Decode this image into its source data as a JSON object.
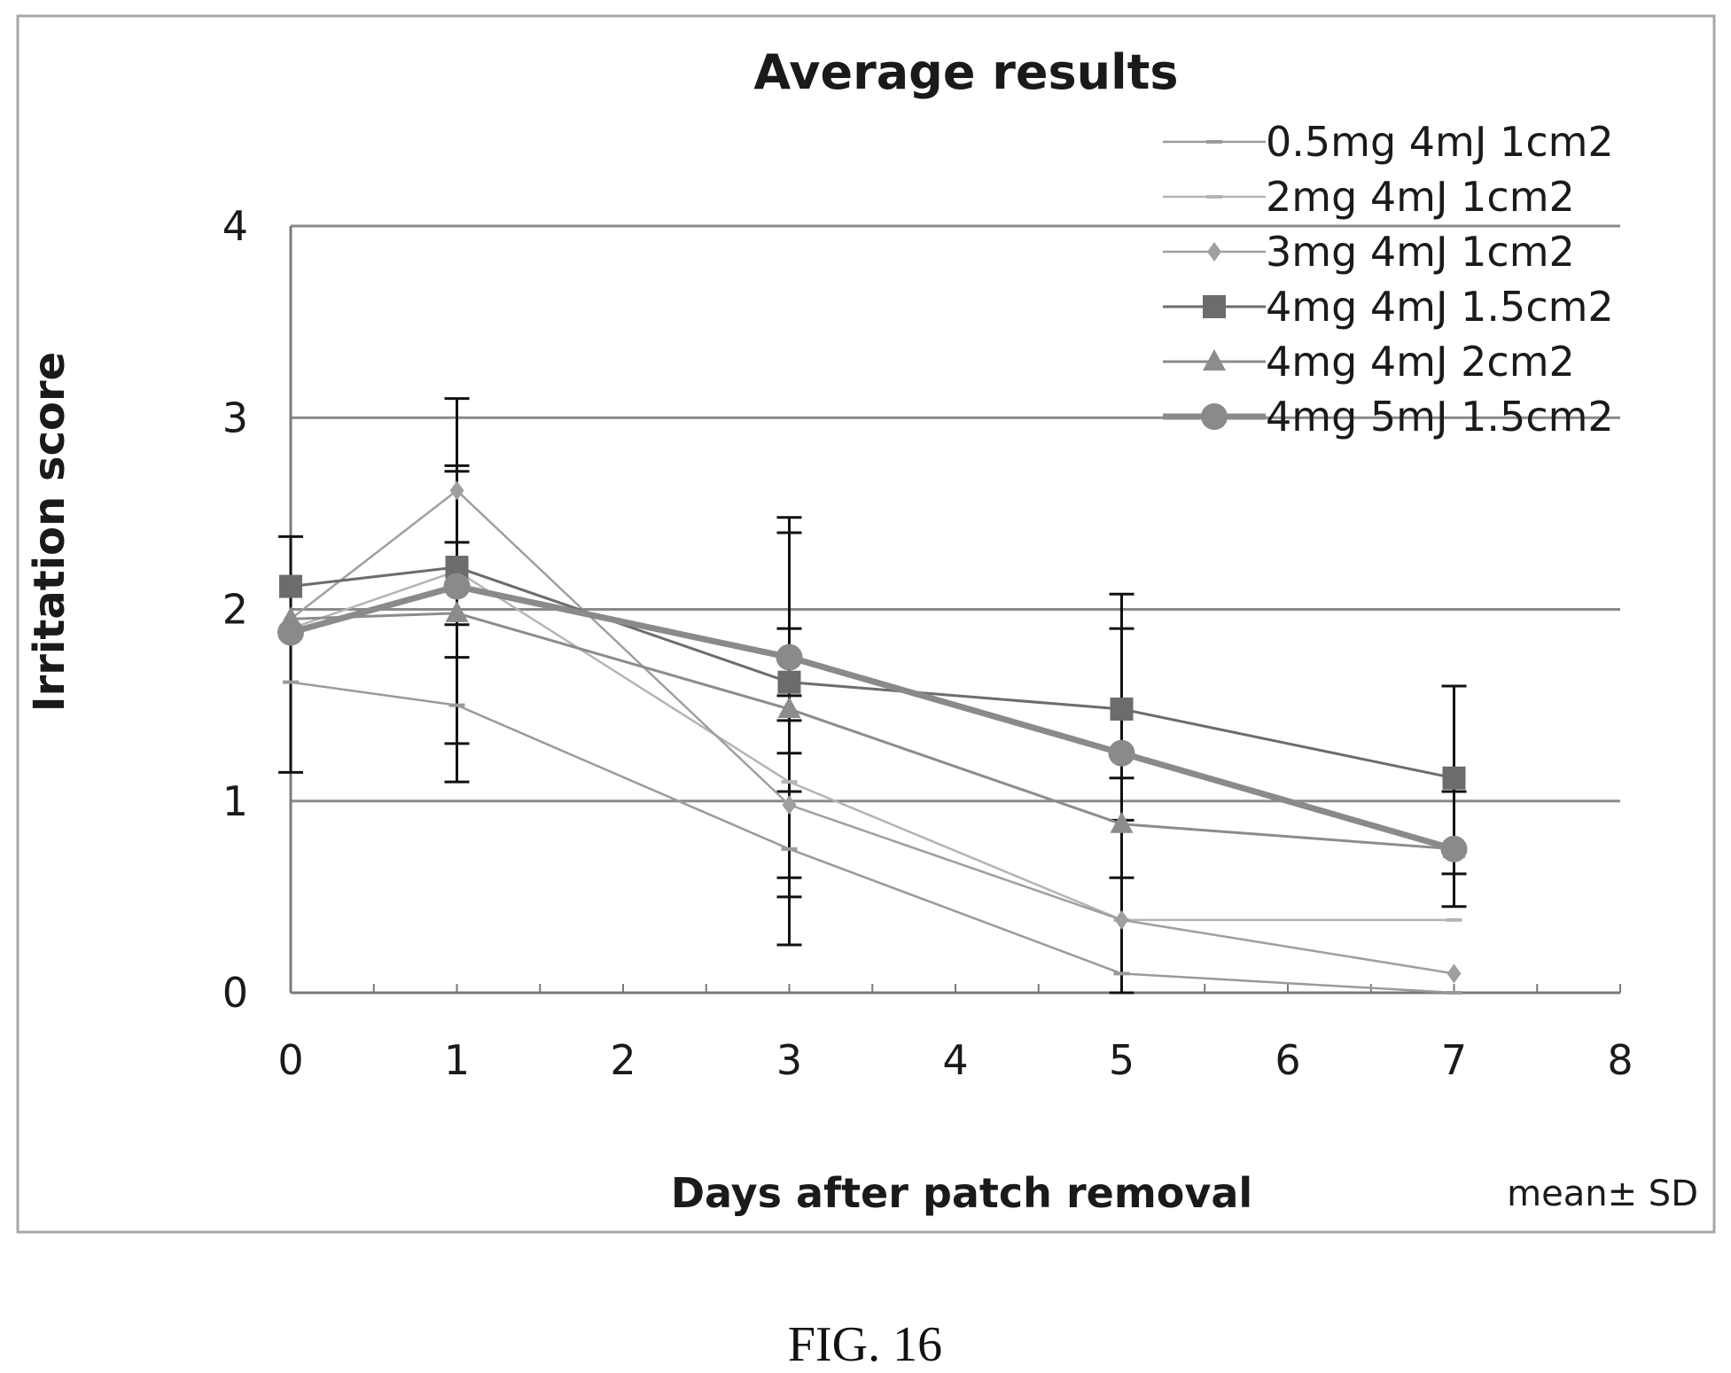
{
  "figure": {
    "caption": "FIG. 16"
  },
  "chart_data": {
    "type": "line",
    "title": "Average results",
    "xlabel": "Days after patch removal",
    "ylabel": "Irritation score",
    "note": "mean± SD",
    "xlim": [
      0,
      8
    ],
    "ylim": [
      0,
      4
    ],
    "x_ticks": [
      "0",
      "1",
      "2",
      "3",
      "4",
      "5",
      "6",
      "7",
      "8"
    ],
    "y_ticks": [
      "0",
      "1",
      "2",
      "3",
      "4"
    ],
    "grid": "horizontal",
    "legend_position": "top-right",
    "x": [
      0,
      1,
      3,
      5,
      7
    ],
    "series": [
      {
        "name": "0.5mg 4mJ 1cm2",
        "values": [
          1.62,
          1.5,
          0.75,
          0.1,
          0.0
        ],
        "marker": "dash",
        "color": "#9a9a9a"
      },
      {
        "name": "2mg 4mJ 1cm2",
        "values": [
          1.9,
          2.2,
          1.1,
          0.38,
          0.38
        ],
        "marker": "dash",
        "color": "#b4b4b4"
      },
      {
        "name": "3mg 4mJ 1cm2",
        "values": [
          1.95,
          2.62,
          0.98,
          0.38,
          0.1
        ],
        "marker": "diamond",
        "color": "#9f9f9f"
      },
      {
        "name": "4mg 4mJ 1.5cm2",
        "values": [
          2.12,
          2.22,
          1.62,
          1.48,
          1.12
        ],
        "marker": "square",
        "color": "#6c6c6c"
      },
      {
        "name": "4mg 4mJ 2cm2",
        "values": [
          1.95,
          1.98,
          1.48,
          0.88,
          0.75
        ],
        "marker": "triangle",
        "color": "#8c8c8c"
      },
      {
        "name": "4mg 5mJ 1.5cm2",
        "values": [
          1.88,
          2.12,
          1.75,
          1.25,
          0.75
        ],
        "marker": "circle",
        "color": "#8a8a8a"
      }
    ],
    "error_bars": [
      {
        "x": 0,
        "low": 1.15,
        "high": 2.38
      },
      {
        "x": 1,
        "low": 1.1,
        "high": 3.1
      },
      {
        "x": 1,
        "low": 1.3,
        "high": 2.72
      },
      {
        "x": 1,
        "low": 1.75,
        "high": 2.35
      },
      {
        "x": 1,
        "low": 1.92,
        "high": 2.75
      },
      {
        "x": 3,
        "low": 0.25,
        "high": 2.48
      },
      {
        "x": 3,
        "low": 0.5,
        "high": 2.4
      },
      {
        "x": 3,
        "low": 0.6,
        "high": 1.9
      },
      {
        "x": 3,
        "low": 1.05,
        "high": 1.42
      },
      {
        "x": 3,
        "low": 1.25,
        "high": 1.55
      },
      {
        "x": 5,
        "low": 0.0,
        "high": 2.08
      },
      {
        "x": 5,
        "low": 0.6,
        "high": 1.9
      },
      {
        "x": 5,
        "low": 0.9,
        "high": 1.12
      },
      {
        "x": 7,
        "low": 0.45,
        "high": 1.6
      },
      {
        "x": 7,
        "low": 0.62,
        "high": 1.05
      }
    ]
  }
}
